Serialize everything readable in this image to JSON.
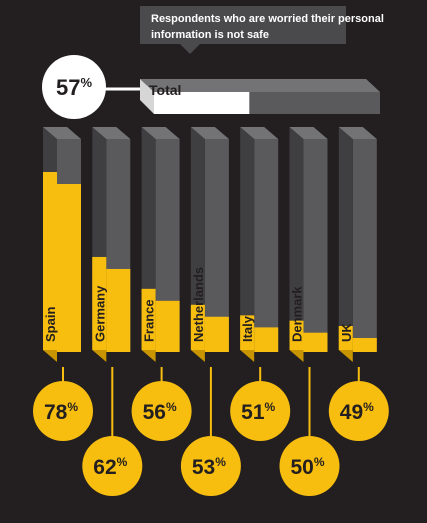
{
  "chart_data": {
    "type": "bar",
    "title": "Respondents who are worried their personal information is not safe",
    "total": {
      "label": "Total",
      "value": 57,
      "display": "57%"
    },
    "categories": [
      "Spain",
      "Germany",
      "France",
      "Netherlands",
      "Italy",
      "Denmark",
      "UK"
    ],
    "values": [
      78,
      62,
      56,
      53,
      51,
      50,
      49
    ],
    "value_labels": [
      "78%",
      "62%",
      "56%",
      "53%",
      "51%",
      "50%",
      "49%"
    ],
    "ylim": [
      0,
      100
    ]
  },
  "colors": {
    "background": "#231f20",
    "bar_fill": "#f7bd0f",
    "bar_fill_side": "#c89400",
    "bar_empty": "#5a5a5c",
    "bar_empty_side": "#3f3f41",
    "bar_top": "#737375",
    "callout": "#4a4a4c",
    "connector": "#f7bd0f"
  }
}
